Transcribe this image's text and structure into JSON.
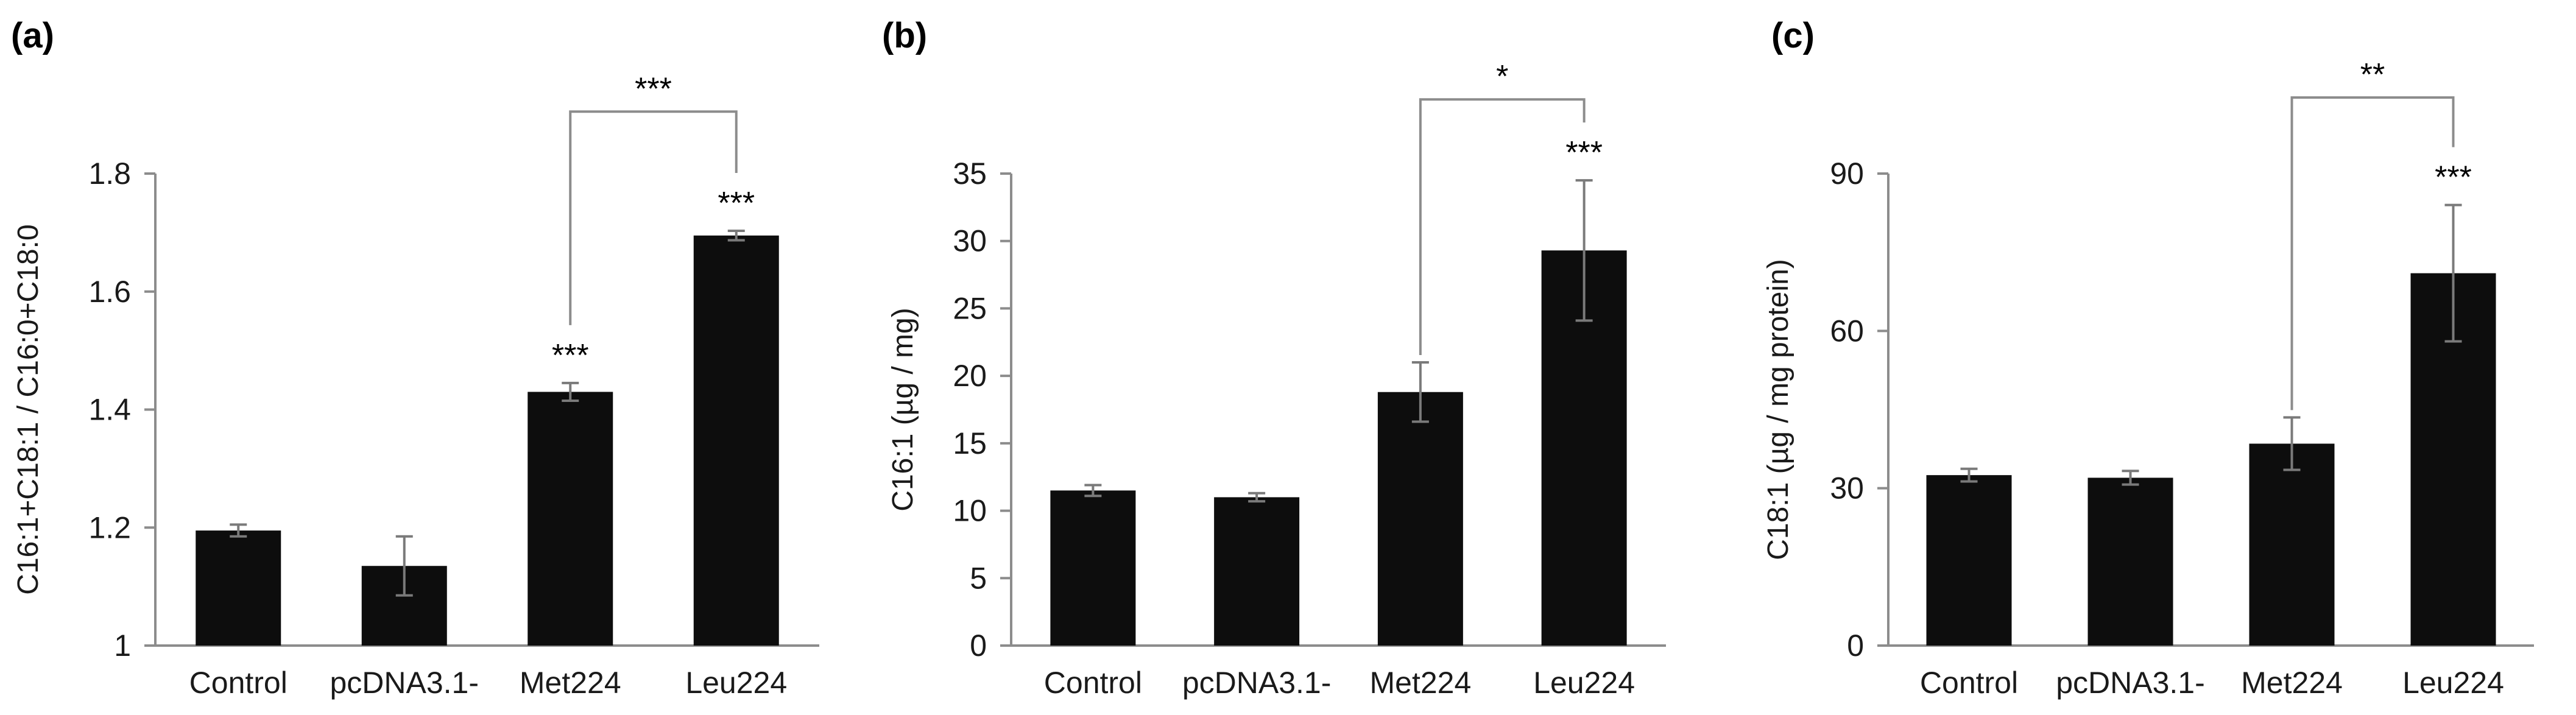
{
  "chart_data": [
    {
      "panel": "(a)",
      "type": "bar",
      "categories": [
        "Control",
        "pcDNA3.1-",
        "Met224",
        "Leu224"
      ],
      "values": [
        1.195,
        1.135,
        1.43,
        1.695
      ],
      "errors": [
        0.01,
        0.05,
        0.015,
        0.008
      ],
      "ylabel": "C16:1+C18:1 / C16:0+C18:0",
      "xlabel": "",
      "ylim": [
        1,
        1.8
      ],
      "yticks": [
        1,
        1.2,
        1.4,
        1.6,
        1.8
      ],
      "ytick_labels": [
        "1",
        "1.2",
        "1.4",
        "1.6",
        "1.8"
      ],
      "bar_annotations": [
        {
          "category": "Met224",
          "text": "***"
        },
        {
          "category": "Leu224",
          "text": "***"
        }
      ],
      "comparison": {
        "from": "Met224",
        "to": "Leu224",
        "text": "***",
        "level": 1.905
      }
    },
    {
      "panel": "(b)",
      "type": "bar",
      "categories": [
        "Control",
        "pcDNA3.1-",
        "Met224",
        "Leu224"
      ],
      "values": [
        11.5,
        11.0,
        18.8,
        29.3
      ],
      "errors": [
        0.4,
        0.3,
        2.2,
        5.2
      ],
      "ylabel": "C16:1 (µg / mg)",
      "xlabel": "",
      "ylim": [
        0,
        35
      ],
      "yticks": [
        0,
        5,
        10,
        15,
        20,
        25,
        30,
        35
      ],
      "ytick_labels": [
        "0",
        "5",
        "10",
        "15",
        "20",
        "25",
        "30",
        "35"
      ],
      "bar_annotations": [
        {
          "category": "Leu224",
          "text": "***"
        }
      ],
      "comparison": {
        "from": "Met224",
        "to": "Leu224",
        "text": "*",
        "level": 40.5
      }
    },
    {
      "panel": "(c)",
      "type": "bar",
      "categories": [
        "Control",
        "pcDNA3.1-",
        "Met224",
        "Leu224"
      ],
      "values": [
        32.5,
        32.0,
        38.5,
        71.0
      ],
      "errors": [
        1.2,
        1.3,
        5.0,
        13.0
      ],
      "ylabel": "C18:1 (µg / mg protein)",
      "xlabel": "",
      "ylim": [
        0,
        90
      ],
      "yticks": [
        0,
        30,
        60,
        90
      ],
      "ytick_labels": [
        "0",
        "30",
        "60",
        "90"
      ],
      "bar_annotations": [
        {
          "category": "Leu224",
          "text": "***"
        }
      ],
      "comparison": {
        "from": "Met224",
        "to": "Leu224",
        "text": "**",
        "level": 104.5
      }
    }
  ]
}
